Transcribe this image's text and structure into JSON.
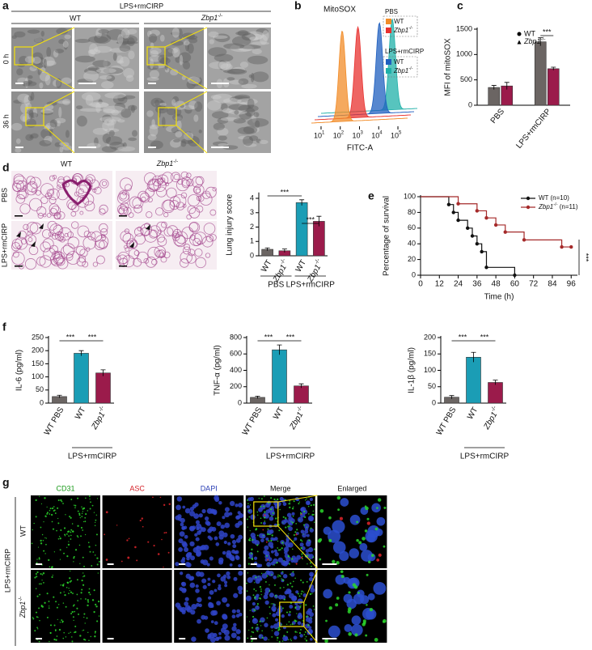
{
  "panel_labels": [
    "a",
    "b",
    "c",
    "d",
    "e",
    "f",
    "g"
  ],
  "panel_a": {
    "title": "LPS+rmCIRP",
    "columns": [
      "WT",
      "Zbp1-/-"
    ],
    "rows": [
      "0 h",
      "36 h"
    ]
  },
  "panel_d_images": {
    "columns": [
      "WT",
      "Zbp1-/-"
    ],
    "rows": [
      "PBS",
      "LPS+rmCIRP"
    ]
  },
  "panel_g": {
    "columns": [
      "CD31",
      "ASC",
      "DAPI",
      "Merge",
      "Enlarged"
    ],
    "rows": [
      "WT",
      "Zbp1-/-"
    ],
    "group": "LPS+rmCIRP"
  },
  "chart_data": [
    {
      "type": "density",
      "title": "MitoSOX",
      "xlabel": "FITC-A",
      "xlim": [
        0.5,
        5.5
      ],
      "xticks": [
        {
          "value": 1,
          "label": "10",
          "exponent": "1"
        },
        {
          "value": 2,
          "label": "10",
          "exponent": "2"
        },
        {
          "value": 3,
          "label": "10",
          "exponent": "3"
        },
        {
          "value": 4,
          "label": "10",
          "exponent": "4"
        },
        {
          "value": 5,
          "label": "10",
          "exponent": "5"
        }
      ],
      "groups": [
        {
          "name": "PBS",
          "series": [
            {
              "name": "WT",
              "color": "#f28c28",
              "values": [
                2.1
              ]
            },
            {
              "name": "Zbp1-/-",
              "color": "#e8312f",
              "values": [
                2.75
              ]
            }
          ]
        },
        {
          "name": "LPS+rmCIRP",
          "series": [
            {
              "name": "WT",
              "color": "#1f5fbf",
              "values": [
                3.7
              ]
            },
            {
              "name": "Zbp1-/-",
              "color": "#1fb0a8",
              "values": [
                4.2
              ]
            }
          ]
        }
      ]
    },
    {
      "type": "bar",
      "ylabel": "MFI of mitoSOX",
      "categories": [
        "PBS",
        "LPS+rmCIRP"
      ],
      "ylim": [
        0,
        1500
      ],
      "yticks": [
        0,
        500,
        1000,
        1500
      ],
      "series": [
        {
          "name": "WT",
          "marker": "circle",
          "color": "#6b6563",
          "values": [
            350,
            1250
          ],
          "errors": [
            40,
            80
          ]
        },
        {
          "name": "Zbp1-/-",
          "marker": "triangle",
          "color": "#9b1b4b",
          "values": [
            380,
            720
          ],
          "errors": [
            70,
            30
          ]
        }
      ],
      "annotations": [
        "***"
      ]
    },
    {
      "type": "bar",
      "ylabel": "Lung injury score",
      "categories": [
        "WT",
        "Zbp1-/-",
        "WT",
        "Zbp1-/-"
      ],
      "groups": [
        "PBS",
        "LPS+rmCIRP"
      ],
      "values": [
        0.45,
        0.35,
        3.7,
        2.4
      ],
      "errors": [
        0.1,
        0.12,
        0.2,
        0.35
      ],
      "colors": [
        "#6b6563",
        "#9b1b4b",
        "#1b9db5",
        "#9b1b4b"
      ],
      "ylim": [
        0,
        4.3
      ],
      "yticks": [
        0,
        1,
        2,
        3,
        4
      ],
      "annotations": [
        "***",
        "***"
      ]
    },
    {
      "type": "line",
      "ylabel": "Percentage of survival",
      "xlabel": "Time (h)",
      "xlim": [
        0,
        100
      ],
      "xticks": [
        0,
        12,
        24,
        36,
        48,
        60,
        72,
        84,
        96
      ],
      "ylim": [
        0,
        100
      ],
      "yticks": [
        0,
        20,
        40,
        60,
        80,
        100
      ],
      "step": true,
      "series": [
        {
          "name": "WT (n=10)",
          "color": "#111111",
          "x": [
            0,
            18,
            21,
            24,
            30,
            33,
            36,
            39,
            42,
            60
          ],
          "values": [
            100,
            90,
            80,
            70,
            60,
            50,
            40,
            30,
            10,
            0
          ]
        },
        {
          "name": "Zbp1-/- (n=11)",
          "color": "#a52a2a",
          "x": [
            0,
            24,
            36,
            42,
            48,
            54,
            66,
            90,
            96
          ],
          "values": [
            100,
            91,
            82,
            73,
            64,
            55,
            45,
            36,
            36
          ]
        }
      ],
      "annotations": [
        "***"
      ]
    },
    {
      "type": "bar",
      "ylabel": "IL-6 (pg/ml)",
      "categories": [
        "WT PBS",
        "WT",
        "Zbp1-/-"
      ],
      "groups": [
        "LPS+rmCIRP"
      ],
      "values": [
        25,
        190,
        115
      ],
      "errors": [
        5,
        10,
        12
      ],
      "colors": [
        "#6b6563",
        "#1b9db5",
        "#9b1b4b"
      ],
      "ylim": [
        0,
        250
      ],
      "yticks": [
        0,
        50,
        100,
        150,
        200,
        250
      ],
      "annotations": [
        "***",
        "***"
      ]
    },
    {
      "type": "bar",
      "ylabel": "TNF-α (pg/ml)",
      "categories": [
        "WT PBS",
        "WT",
        "Zbp1-/-"
      ],
      "groups": [
        "LPS+rmCIRP"
      ],
      "values": [
        70,
        650,
        210
      ],
      "errors": [
        15,
        60,
        25
      ],
      "colors": [
        "#6b6563",
        "#1b9db5",
        "#9b1b4b"
      ],
      "ylim": [
        0,
        800
      ],
      "yticks": [
        0,
        200,
        400,
        600,
        800
      ],
      "annotations": [
        "***",
        "***"
      ]
    },
    {
      "type": "bar",
      "ylabel": "IL-1β (pg/ml)",
      "categories": [
        "WT PBS",
        "WT",
        "Zbp1-/-"
      ],
      "groups": [
        "LPS+rmCIRP"
      ],
      "values": [
        18,
        140,
        63
      ],
      "errors": [
        5,
        15,
        7
      ],
      "colors": [
        "#6b6563",
        "#1b9db5",
        "#9b1b4b"
      ],
      "ylim": [
        0,
        200
      ],
      "yticks": [
        0,
        50,
        100,
        150,
        200
      ],
      "annotations": [
        "***",
        "***"
      ]
    }
  ]
}
